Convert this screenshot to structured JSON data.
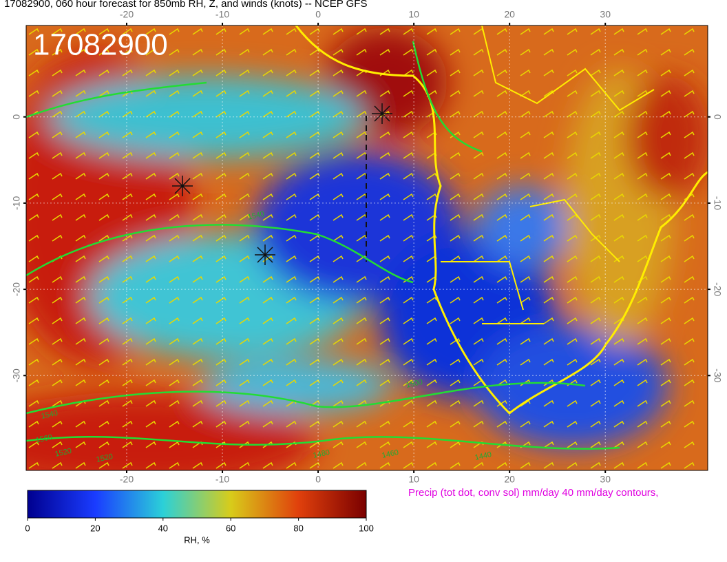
{
  "chart_data": {
    "type": "map",
    "title": "17082900, 060 hour forecast for 850mb RH, Z, and winds (knots)  -- NCEP GFS",
    "stamp": "17082900",
    "xlim": [
      -30.5,
      40.7
    ],
    "ylim": [
      -41,
      10.6
    ],
    "xticks": [
      -20,
      -10,
      0,
      10,
      20,
      30
    ],
    "yticks": [
      0,
      -10,
      -20,
      -30
    ],
    "grid": true,
    "contour_labels": [
      "1540",
      "1520",
      "1560",
      "1540",
      "1520",
      "1480",
      "1460",
      "1440",
      "1500"
    ],
    "colorbar": {
      "label": "RH, %",
      "lim": [
        0,
        100
      ],
      "ticks": [
        0,
        20,
        40,
        60,
        80,
        100
      ]
    },
    "caption": "Precip (tot dot, conv sol) mm/day 40 mm/day contours,"
  }
}
